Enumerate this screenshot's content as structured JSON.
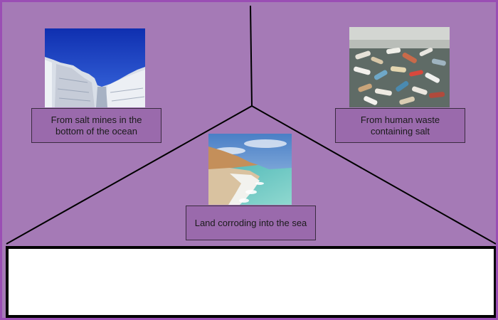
{
  "sources": [
    {
      "image": "white-salt-cliffs-photo",
      "caption": "From salt mines in the bottom of the ocean"
    },
    {
      "image": "plastic-bottles-in-water-photo",
      "caption": "From human waste containing salt"
    },
    {
      "image": "dead-sea-salt-shore-photo",
      "caption": "Land corroding into the sea"
    }
  ],
  "answer_box": {
    "text": ""
  },
  "colors": {
    "background": "#a57ab6",
    "frame": "#9a4eb4",
    "caption_fill": "#9a6aac",
    "divider": "#000000"
  }
}
